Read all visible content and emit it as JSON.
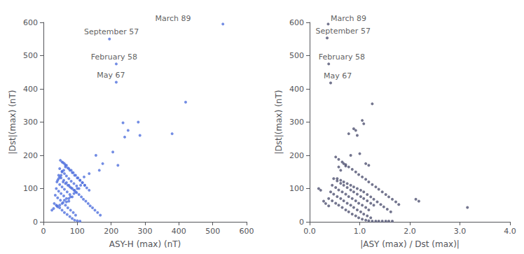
{
  "chart_data": [
    {
      "type": "scatter",
      "xlabel": "ASY-H (max) (nT)",
      "ylabel": "|Dst|(max) (nT)",
      "xlim": [
        0,
        600
      ],
      "ylim": [
        0,
        600
      ],
      "xticks": [
        0,
        100,
        200,
        300,
        400,
        500,
        600
      ],
      "yticks": [
        0,
        100,
        200,
        300,
        400,
        500,
        600
      ],
      "grid": false,
      "annotations": [
        {
          "text": "March 89",
          "x": 330,
          "y": 600
        },
        {
          "text": "September 57",
          "x": 120,
          "y": 560
        },
        {
          "text": "February 58",
          "x": 140,
          "y": 485
        },
        {
          "text": "May 67",
          "x": 158,
          "y": 430
        }
      ],
      "x": [
        530,
        195,
        215,
        215,
        420,
        380,
        235,
        250,
        240,
        280,
        285,
        205,
        220,
        175,
        165,
        155,
        135,
        110,
        120,
        100,
        95,
        90,
        80,
        75,
        68,
        62,
        55,
        48,
        42,
        38,
        30,
        25,
        65,
        60,
        55,
        52,
        48,
        45,
        42,
        58,
        65,
        72,
        78,
        85,
        92,
        98,
        105,
        112,
        118,
        125,
        132,
        138,
        145,
        152,
        160,
        168,
        55,
        62,
        68,
        75,
        82,
        88,
        95,
        102,
        108,
        115,
        122,
        128,
        135,
        50,
        58,
        65,
        72,
        78,
        85,
        92,
        100,
        108,
        115,
        122,
        48,
        55,
        62,
        68,
        75,
        82,
        90,
        98,
        105,
        45,
        52,
        60,
        68,
        75,
        82,
        90,
        40,
        48,
        55,
        62,
        70,
        78,
        85,
        38,
        45,
        52,
        60,
        68,
        75,
        35,
        42,
        50,
        58,
        65,
        72,
        80,
        88,
        95,
        32,
        40,
        48,
        55,
        62,
        70,
        78,
        85,
        92,
        100,
        108
      ],
      "values": [
        595,
        550,
        475,
        420,
        360,
        265,
        298,
        275,
        255,
        300,
        260,
        210,
        170,
        175,
        155,
        200,
        145,
        110,
        135,
        100,
        90,
        85,
        75,
        70,
        60,
        65,
        55,
        50,
        45,
        50,
        40,
        35,
        165,
        155,
        150,
        140,
        135,
        130,
        125,
        120,
        115,
        110,
        105,
        100,
        95,
        88,
        82,
        75,
        68,
        62,
        55,
        48,
        42,
        35,
        28,
        20,
        180,
        175,
        170,
        160,
        155,
        148,
        140,
        132,
        125,
        118,
        110,
        102,
        95,
        185,
        178,
        170,
        162,
        155,
        148,
        140,
        132,
        125,
        118,
        110,
        160,
        152,
        145,
        138,
        130,
        122,
        115,
        108,
        100,
        140,
        132,
        125,
        118,
        110,
        102,
        95,
        120,
        112,
        105,
        98,
        90,
        82,
        75,
        100,
        92,
        85,
        78,
        70,
        62,
        80,
        72,
        65,
        58,
        50,
        42,
        35,
        28,
        20,
        55,
        48,
        42,
        35,
        28,
        22,
        16,
        10,
        5,
        3,
        2
      ]
    },
    {
      "type": "scatter",
      "xlabel": "|ASY (max) / Dst (max)|",
      "ylabel": "|Dst|(max) (nT)",
      "xlim": [
        0,
        4.0
      ],
      "ylim": [
        0,
        600
      ],
      "xticks": [
        {
          "value": 0,
          "label": "0.0"
        },
        {
          "value": 1.0,
          "label": "1.0"
        },
        {
          "value": 2.0,
          "label": "2.0"
        },
        {
          "value": 3.0,
          "label": "3.0"
        },
        {
          "value": 4.0,
          "label": "4.0"
        }
      ],
      "yticks": [
        0,
        100,
        200,
        300,
        400,
        500,
        600
      ],
      "grid": false,
      "annotations": [
        {
          "text": "March 89",
          "x": 0.42,
          "y": 600
        },
        {
          "text": "September 57",
          "x": 0.12,
          "y": 562
        },
        {
          "text": "February 58",
          "x": 0.18,
          "y": 485
        },
        {
          "text": "May 67",
          "x": 0.28,
          "y": 428
        }
      ],
      "x": [
        0.37,
        0.35,
        0.38,
        0.42,
        1.25,
        3.15,
        0.78,
        0.92,
        1.08,
        1.05,
        0.82,
        0.88,
        0.95,
        1.0,
        1.12,
        1.18,
        0.68,
        0.72,
        0.62,
        0.58,
        0.55,
        0.62,
        0.68,
        0.75,
        0.82,
        0.88,
        0.95,
        1.02,
        1.08,
        1.15,
        1.22,
        1.28,
        1.35,
        1.42,
        1.48,
        1.55,
        1.62,
        0.52,
        0.58,
        0.65,
        0.72,
        0.78,
        0.85,
        0.92,
        0.98,
        1.05,
        1.12,
        1.18,
        1.25,
        1.32,
        1.38,
        1.45,
        1.52,
        1.58,
        1.65,
        1.72,
        1.78,
        0.48,
        0.55,
        0.62,
        0.68,
        0.75,
        0.82,
        0.88,
        0.95,
        1.02,
        1.08,
        1.15,
        1.22,
        1.28,
        0.45,
        0.52,
        0.58,
        0.65,
        0.72,
        0.78,
        0.85,
        0.92,
        0.98,
        1.05,
        1.12,
        1.18,
        0.42,
        0.48,
        0.55,
        0.62,
        0.68,
        0.75,
        0.82,
        0.88,
        0.95,
        1.02,
        1.08,
        1.15,
        1.22,
        0.38,
        0.45,
        0.52,
        0.58,
        0.65,
        0.72,
        0.78,
        0.85,
        0.92,
        0.98,
        1.05,
        1.12,
        1.18,
        1.25,
        1.32,
        1.38,
        1.45,
        1.52,
        1.58,
        1.65,
        2.12,
        2.18,
        0.18,
        0.22,
        0.28,
        0.32,
        0.38
      ],
      "values": [
        595,
        553,
        475,
        418,
        355,
        43,
        265,
        275,
        295,
        305,
        200,
        280,
        260,
        205,
        175,
        170,
        175,
        168,
        155,
        165,
        130,
        125,
        120,
        115,
        110,
        105,
        100,
        95,
        90,
        82,
        75,
        68,
        60,
        52,
        45,
        38,
        30,
        195,
        188,
        180,
        172,
        165,
        158,
        150,
        142,
        135,
        128,
        120,
        112,
        105,
        98,
        90,
        82,
        75,
        68,
        60,
        52,
        130,
        123,
        116,
        110,
        103,
        96,
        90,
        83,
        76,
        70,
        63,
        56,
        50,
        110,
        103,
        96,
        90,
        83,
        76,
        70,
        63,
        56,
        50,
        43,
        36,
        90,
        83,
        76,
        70,
        63,
        56,
        50,
        43,
        36,
        30,
        23,
        18,
        12,
        70,
        63,
        56,
        50,
        43,
        36,
        30,
        23,
        18,
        12,
        8,
        5,
        3,
        2,
        2,
        2,
        2,
        2,
        2,
        2,
        68,
        62,
        100,
        95,
        62,
        55,
        48
      ]
    }
  ]
}
